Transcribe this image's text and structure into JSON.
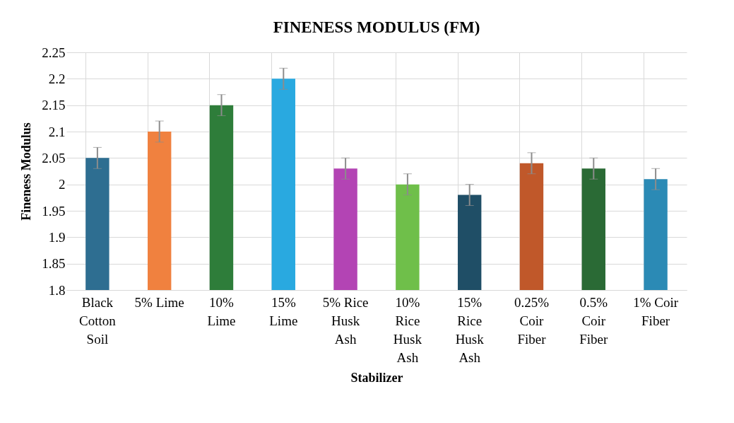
{
  "chart_data": {
    "type": "bar",
    "title": "FINENESS MODULUS (FM)",
    "xlabel": "Stabilizer",
    "ylabel": "Fineness Modulus",
    "categories": [
      "Black Cotton Soil",
      "5% Lime",
      "10% Lime",
      "15% Lime",
      "5% Rice Husk Ash",
      "10% Rice Husk Ash",
      "15% Rice Husk Ash",
      "0.25% Coir Fiber",
      "0.5% Coir Fiber",
      "1% Coir Fiber"
    ],
    "values": [
      2.05,
      2.1,
      2.15,
      2.2,
      2.03,
      2.0,
      1.98,
      2.04,
      2.03,
      2.01
    ],
    "errors": [
      0.02,
      0.02,
      0.02,
      0.02,
      0.02,
      0.02,
      0.02,
      0.02,
      0.02,
      0.02
    ],
    "colors": [
      "#2e6e91",
      "#f0813f",
      "#2e7d3a",
      "#29a9e0",
      "#b344b4",
      "#6fbf4a",
      "#1f4e66",
      "#c0582a",
      "#2a6a35",
      "#2b8ab5"
    ],
    "ylim": [
      1.8,
      2.25
    ],
    "yticks": [
      1.8,
      1.85,
      1.9,
      1.95,
      2,
      2.05,
      2.1,
      2.15,
      2.2,
      2.25
    ],
    "grid": true,
    "legend": false
  }
}
